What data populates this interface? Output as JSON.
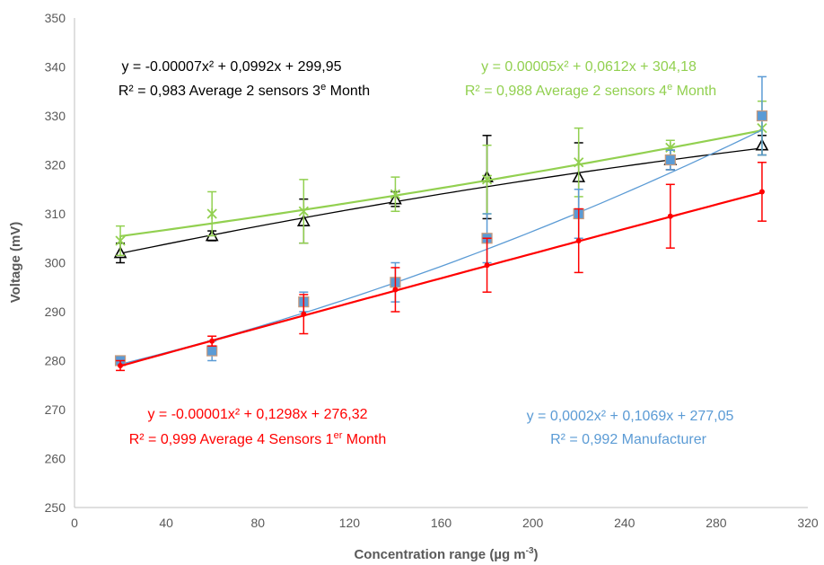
{
  "chart_data": {
    "type": "scatter",
    "xlabel": "Concentration  range (µg m",
    "xlabel_sup": "-3",
    "xlabel_end": ")",
    "ylabel": "Voltage (mV)",
    "xlim": [
      0,
      320
    ],
    "ylim": [
      250,
      350
    ],
    "x_ticks": [
      "0",
      "40",
      "80",
      "120",
      "160",
      "200",
      "240",
      "280",
      "320"
    ],
    "y_ticks": [
      "250",
      "260",
      "270",
      "280",
      "290",
      "300",
      "310",
      "320",
      "330",
      "340",
      "350"
    ],
    "grid": false,
    "series": [
      {
        "id": "black",
        "color": "#000000",
        "marker": "triangle",
        "x": [
          20,
          60,
          100,
          140,
          180,
          220,
          260,
          300
        ],
        "y": [
          302,
          305.5,
          308.5,
          313,
          317.5,
          317.5,
          321,
          324
        ],
        "err": [
          2,
          1,
          4.5,
          1.5,
          8.5,
          7,
          2,
          2
        ],
        "fit": [
          -7e-05,
          0.0992,
          299.95
        ],
        "equation": "y = -0.00007x² + 0,0992x + 299,95",
        "r2_text": "R² = 0,983  Average 2 sensors 3",
        "r2_sup": "e",
        "r2_end": " Month"
      },
      {
        "id": "green",
        "color": "#92d050",
        "marker": "star",
        "x": [
          20,
          60,
          100,
          140,
          180,
          220,
          260,
          300
        ],
        "y": [
          304.5,
          310,
          310.5,
          314,
          317,
          320.5,
          323.5,
          327.5
        ],
        "err": [
          3,
          4.5,
          6.5,
          3.5,
          7,
          7,
          1.5,
          5.5
        ],
        "fit": [
          5e-05,
          0.0612,
          304.18
        ],
        "equation": "y = 0.00005x² + 0,0612x + 304,18",
        "r2_text": "R² = 0,988  Average 2 sensors 4",
        "r2_sup": "e",
        "r2_end": " Month"
      },
      {
        "id": "blue",
        "color": "#5b9bd5",
        "marker": "square",
        "x": [
          20,
          60,
          100,
          140,
          180,
          220,
          260,
          300
        ],
        "y": [
          280,
          282,
          292,
          296,
          305,
          310,
          321,
          330
        ],
        "err": [
          0.5,
          2,
          2,
          4,
          5,
          5,
          2,
          8
        ],
        "fit": [
          0.0002,
          0.1069,
          277.05
        ],
        "equation": "y = 0,0002x² + 0,1069x + 277,05",
        "r2_text": "R² = 0,992  Manufacturer",
        "r2_sup": "",
        "r2_end": ""
      },
      {
        "id": "red",
        "color": "#ff0000",
        "marker": "dot",
        "x": [
          20,
          60,
          100,
          140,
          180,
          220,
          260,
          300
        ],
        "y": [
          279,
          284,
          289.5,
          294.5,
          299.5,
          304.5,
          309.5,
          314.5
        ],
        "err": [
          1,
          1,
          4,
          4.5,
          5.5,
          6.5,
          6.5,
          6
        ],
        "fit": [
          -1e-05,
          0.1298,
          276.32
        ],
        "equation": "y = -0.00001x² + 0,1298x + 276,32",
        "r2_text": "R² = 0,999  Average 4 Sensors 1",
        "r2_sup": "er",
        "r2_end": " Month"
      }
    ]
  }
}
